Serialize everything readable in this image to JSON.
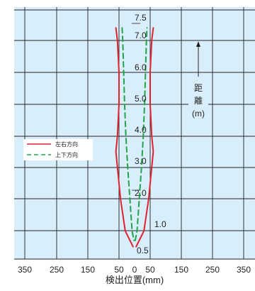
{
  "chart_data": {
    "type": "line",
    "xlabel": "検出位置(mm)",
    "ylabel_chars": [
      "距",
      "離"
    ],
    "ylabel_unit": "(m)",
    "x_ticks_left": [
      "350",
      "250",
      "150",
      "50"
    ],
    "x_tick_zero": "0",
    "x_ticks_right": [
      "50",
      "150",
      "250",
      "350"
    ],
    "y_labels": [
      "0.5",
      "1.0",
      "2.0",
      "3.0",
      "4.0",
      "5.0",
      "6.0",
      "7.0",
      "7.5"
    ],
    "xlim": [
      -350,
      350
    ],
    "ylim": [
      0.5,
      7.5
    ],
    "grid": true,
    "legend_position": "left-middle",
    "series": [
      {
        "name": "左右方向",
        "color": "#e0212f",
        "style": "solid",
        "points_left": [
          [
            -60,
            7.4
          ],
          [
            -55,
            7.0
          ],
          [
            -50,
            6.0
          ],
          [
            -50,
            5.0
          ],
          [
            -55,
            4.0
          ],
          [
            -60,
            3.5
          ],
          [
            -55,
            3.0
          ],
          [
            -50,
            2.5
          ],
          [
            -45,
            2.0
          ],
          [
            -30,
            1.0
          ],
          [
            -5,
            0.5
          ]
        ],
        "points_right": [
          [
            5,
            0.5
          ],
          [
            30,
            1.0
          ],
          [
            45,
            2.0
          ],
          [
            50,
            2.5
          ],
          [
            55,
            3.0
          ],
          [
            60,
            3.5
          ],
          [
            55,
            4.0
          ],
          [
            50,
            5.0
          ],
          [
            50,
            6.0
          ],
          [
            55,
            7.0
          ],
          [
            60,
            7.4
          ]
        ]
      },
      {
        "name": "上下方向",
        "color": "#22a349",
        "style": "dashed",
        "points_left": [
          [
            -40,
            7.4
          ],
          [
            -38,
            7.0
          ],
          [
            -35,
            6.0
          ],
          [
            -32,
            5.0
          ],
          [
            -28,
            4.0
          ],
          [
            -22,
            3.0
          ],
          [
            -15,
            2.0
          ],
          [
            -8,
            1.0
          ],
          [
            -2,
            0.7
          ]
        ],
        "points_right": [
          [
            2,
            0.7
          ],
          [
            8,
            1.0
          ],
          [
            15,
            2.0
          ],
          [
            22,
            3.0
          ],
          [
            28,
            4.0
          ],
          [
            32,
            5.0
          ],
          [
            35,
            6.0
          ],
          [
            38,
            7.0
          ],
          [
            40,
            7.4
          ]
        ]
      }
    ]
  }
}
